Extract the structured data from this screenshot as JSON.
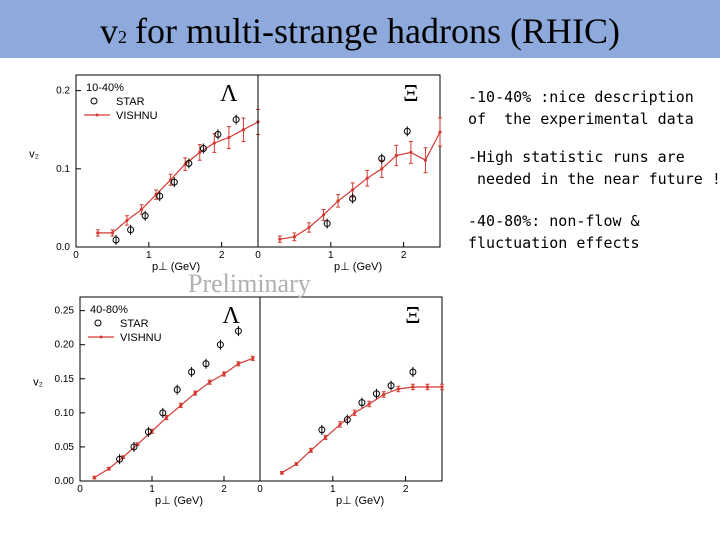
{
  "header": {
    "title_v": "v",
    "title_sub": "2",
    "title_rest": "for multi-strange hadrons (RHIC)"
  },
  "notes": [
    "-10-40% :nice description",
    "of  the experimental data",
    "-High statistic runs are",
    " needed in the near future !",
    "-40-80%: non-flow &",
    "fluctuation effects"
  ],
  "watermark": "Preliminary",
  "colors": {
    "title_bar": "#8eaadc",
    "model": "#d23a32",
    "data": "#000000"
  },
  "chart_data": [
    {
      "type": "scatter",
      "centrality": "10-40%",
      "particle": "Λ",
      "xlabel": "p⊥ (GeV)",
      "ylabel": "v₂",
      "xlim": [
        0,
        2.5
      ],
      "ylim": [
        0,
        0.22
      ],
      "xticks": [
        "0",
        "1",
        "2"
      ],
      "yticks": [
        "0.0",
        "0.1",
        "0.2"
      ],
      "legend": [
        "STAR",
        "VISHNU"
      ],
      "series": [
        {
          "name": "STAR",
          "x": [
            0.55,
            0.75,
            0.95,
            1.15,
            1.35,
            1.55,
            1.75,
            1.95,
            2.2
          ],
          "y": [
            0.009,
            0.022,
            0.04,
            0.065,
            0.083,
            0.107,
            0.126,
            0.144,
            0.163
          ]
        },
        {
          "name": "VISHNU",
          "x": [
            0.3,
            0.5,
            0.7,
            0.9,
            1.1,
            1.3,
            1.5,
            1.7,
            1.9,
            2.1,
            2.3,
            2.5
          ],
          "y": [
            0.018,
            0.018,
            0.034,
            0.048,
            0.067,
            0.086,
            0.106,
            0.121,
            0.133,
            0.14,
            0.15,
            0.16
          ],
          "yerr": [
            0.004,
            0.004,
            0.006,
            0.006,
            0.006,
            0.007,
            0.008,
            0.01,
            0.012,
            0.014,
            0.015,
            0.016
          ]
        }
      ]
    },
    {
      "type": "scatter",
      "centrality": "10-40%",
      "particle": "Ξ",
      "xlabel": "p⊥ (GeV)",
      "ylabel": "",
      "xlim": [
        0,
        2.5
      ],
      "ylim": [
        0,
        0.22
      ],
      "xticks": [
        "0",
        "1",
        "2"
      ],
      "yticks": [],
      "series": [
        {
          "name": "STAR",
          "x": [
            0.95,
            1.3,
            1.7,
            2.05
          ],
          "y": [
            0.03,
            0.062,
            0.113,
            0.148
          ]
        },
        {
          "name": "VISHNU",
          "x": [
            0.3,
            0.5,
            0.7,
            0.9,
            1.1,
            1.3,
            1.5,
            1.7,
            1.9,
            2.1,
            2.3,
            2.5
          ],
          "y": [
            0.01,
            0.013,
            0.025,
            0.041,
            0.059,
            0.073,
            0.088,
            0.1,
            0.117,
            0.121,
            0.111,
            0.147
          ],
          "yerr": [
            0.004,
            0.005,
            0.006,
            0.007,
            0.008,
            0.009,
            0.01,
            0.011,
            0.013,
            0.014,
            0.016,
            0.018
          ]
        }
      ]
    },
    {
      "type": "scatter",
      "centrality": "40-80%",
      "particle": "Λ",
      "xlabel": "p⊥ (GeV)",
      "ylabel": "v₂",
      "xlim": [
        0,
        2.5
      ],
      "ylim": [
        0,
        0.27
      ],
      "xticks": [
        "0",
        "1",
        "2"
      ],
      "yticks": [
        "0.00",
        "0.05",
        "0.10",
        "0.15",
        "0.20",
        "0.25"
      ],
      "legend": [
        "STAR",
        "VISHNU"
      ],
      "series": [
        {
          "name": "STAR",
          "x": [
            0.55,
            0.75,
            0.95,
            1.15,
            1.35,
            1.55,
            1.75,
            1.95,
            2.2
          ],
          "y": [
            0.032,
            0.05,
            0.072,
            0.1,
            0.134,
            0.16,
            0.172,
            0.2,
            0.22
          ]
        },
        {
          "name": "VISHNU",
          "x": [
            0.2,
            0.4,
            0.6,
            0.8,
            1.0,
            1.2,
            1.4,
            1.6,
            1.8,
            2.0,
            2.2,
            2.4
          ],
          "y": [
            0.005,
            0.018,
            0.035,
            0.054,
            0.073,
            0.093,
            0.111,
            0.129,
            0.145,
            0.157,
            0.172,
            0.18
          ],
          "yerr": [
            0.002,
            0.002,
            0.002,
            0.002,
            0.003,
            0.003,
            0.003,
            0.003,
            0.003,
            0.003,
            0.003,
            0.003
          ]
        }
      ]
    },
    {
      "type": "scatter",
      "centrality": "40-80%",
      "particle": "Ξ",
      "xlabel": "p⊥ (GeV)",
      "ylabel": "",
      "xlim": [
        0,
        2.5
      ],
      "ylim": [
        0,
        0.27
      ],
      "xticks": [
        "0",
        "1",
        "2"
      ],
      "yticks": [],
      "series": [
        {
          "name": "STAR",
          "x": [
            0.85,
            1.2,
            1.4,
            1.6,
            1.8,
            2.1
          ],
          "y": [
            0.075,
            0.09,
            0.115,
            0.128,
            0.14,
            0.16
          ]
        },
        {
          "name": "VISHNU",
          "x": [
            0.3,
            0.5,
            0.7,
            0.9,
            1.1,
            1.3,
            1.5,
            1.7,
            1.9,
            2.1,
            2.3,
            2.5
          ],
          "y": [
            0.012,
            0.025,
            0.045,
            0.064,
            0.083,
            0.1,
            0.113,
            0.127,
            0.135,
            0.138,
            0.138,
            0.138
          ],
          "yerr": [
            0.002,
            0.002,
            0.003,
            0.003,
            0.004,
            0.004,
            0.004,
            0.004,
            0.004,
            0.004,
            0.004,
            0.004
          ]
        }
      ]
    }
  ]
}
